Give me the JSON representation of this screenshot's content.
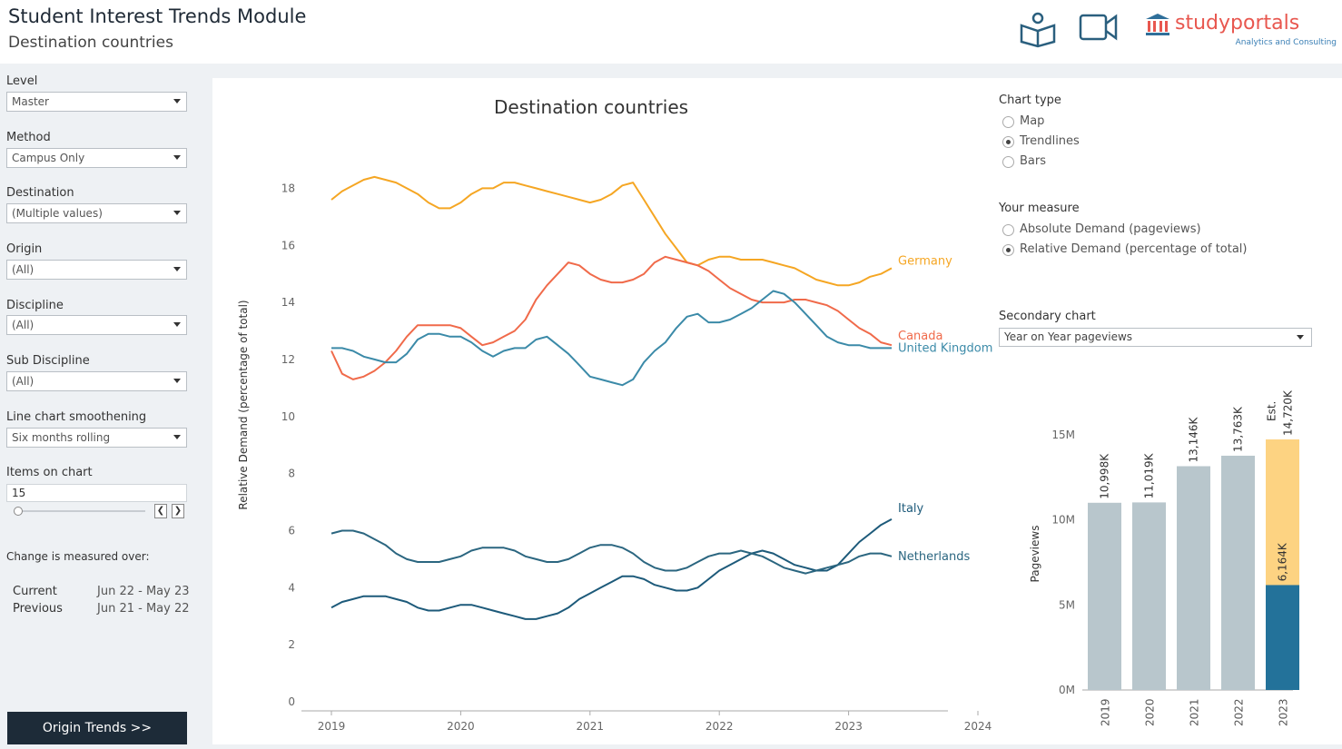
{
  "header": {
    "title": "Student Interest Trends Module",
    "subtitle": "Destination countries",
    "brand_name": "studyportals",
    "brand_tagline": "Analytics and Consulting"
  },
  "filters": [
    {
      "label": "Level",
      "value": "Master"
    },
    {
      "label": "Method",
      "value": "Campus Only"
    },
    {
      "label": "Destination",
      "value": "(Multiple values)"
    },
    {
      "label": "Origin",
      "value": "(All)"
    },
    {
      "label": "Discipline",
      "value": "(All)"
    },
    {
      "label": "Sub Discipline",
      "value": "(All)"
    },
    {
      "label": "Line chart smoothening",
      "value": "Six months rolling"
    }
  ],
  "items_on_chart": {
    "label": "Items on chart",
    "value": "15"
  },
  "change": {
    "note": "Change is measured over:",
    "current_label": "Current",
    "current_value": "Jun 22 - May 23",
    "previous_label": "Previous",
    "previous_value": "Jun 21 - May 22"
  },
  "origin_button": "Origin Trends >>",
  "chart_type": {
    "label": "Chart type",
    "options": [
      "Map",
      "Trendlines",
      "Bars"
    ],
    "selected": "Trendlines"
  },
  "measure": {
    "label": "Your measure",
    "options": [
      "Absolute Demand (pageviews)",
      "Relative Demand (percentage of total)"
    ],
    "selected": "Relative Demand (percentage of total)"
  },
  "secondary": {
    "label": "Secondary chart",
    "value": "Year on Year pageviews"
  },
  "colors": {
    "Germany": "#f5a623",
    "Canada": "#f06a4a",
    "United Kingdom": "#3b8aa8",
    "Italy": "#1d5a7a",
    "Netherlands": "#2b6680",
    "bar_grey": "#b8c6cc",
    "bar_est": "#fdd382",
    "bar_current": "#23729a"
  },
  "chart_data": [
    {
      "type": "line",
      "title": "Destination countries",
      "ylabel": "Relative Demand (percentage of total)",
      "xlabel": "",
      "ylim": [
        0,
        19
      ],
      "xlim": [
        2019,
        2024
      ],
      "yticks": [
        0,
        2,
        4,
        6,
        8,
        10,
        12,
        14,
        16,
        18
      ],
      "xticks": [
        2019,
        2020,
        2021,
        2022,
        2023,
        2024
      ],
      "x": [
        2019.0,
        2019.083,
        2019.167,
        2019.25,
        2019.333,
        2019.417,
        2019.5,
        2019.583,
        2019.667,
        2019.75,
        2019.833,
        2019.917,
        2020.0,
        2020.083,
        2020.167,
        2020.25,
        2020.333,
        2020.417,
        2020.5,
        2020.583,
        2020.667,
        2020.75,
        2020.833,
        2020.917,
        2021.0,
        2021.083,
        2021.167,
        2021.25,
        2021.333,
        2021.417,
        2021.5,
        2021.583,
        2021.667,
        2021.75,
        2021.833,
        2021.917,
        2022.0,
        2022.083,
        2022.167,
        2022.25,
        2022.333,
        2022.417,
        2022.5,
        2022.583,
        2022.667,
        2022.75,
        2022.833,
        2022.917,
        2023.0,
        2023.083,
        2023.167,
        2023.25,
        2023.333
      ],
      "series": [
        {
          "name": "Germany",
          "values": [
            17.6,
            17.9,
            18.1,
            18.3,
            18.4,
            18.3,
            18.2,
            18.0,
            17.8,
            17.5,
            17.3,
            17.3,
            17.5,
            17.8,
            18.0,
            18.0,
            18.2,
            18.2,
            18.1,
            18.0,
            17.9,
            17.8,
            17.7,
            17.6,
            17.5,
            17.6,
            17.8,
            18.1,
            18.2,
            17.6,
            17.0,
            16.4,
            15.9,
            15.4,
            15.3,
            15.5,
            15.6,
            15.6,
            15.5,
            15.5,
            15.5,
            15.4,
            15.3,
            15.2,
            15.0,
            14.8,
            14.7,
            14.6,
            14.6,
            14.7,
            14.9,
            15.0,
            15.2
          ]
        },
        {
          "name": "Canada",
          "values": [
            12.3,
            11.5,
            11.3,
            11.4,
            11.6,
            11.9,
            12.3,
            12.8,
            13.2,
            13.2,
            13.2,
            13.2,
            13.1,
            12.8,
            12.5,
            12.6,
            12.8,
            13.0,
            13.4,
            14.1,
            14.6,
            15.0,
            15.4,
            15.3,
            15.0,
            14.8,
            14.7,
            14.7,
            14.8,
            15.0,
            15.4,
            15.6,
            15.5,
            15.4,
            15.3,
            15.1,
            14.8,
            14.5,
            14.3,
            14.1,
            14.0,
            14.0,
            14.0,
            14.1,
            14.1,
            14.0,
            13.9,
            13.7,
            13.4,
            13.1,
            12.9,
            12.6,
            12.5
          ]
        },
        {
          "name": "United Kingdom",
          "values": [
            12.4,
            12.4,
            12.3,
            12.1,
            12.0,
            11.9,
            11.9,
            12.2,
            12.7,
            12.9,
            12.9,
            12.8,
            12.8,
            12.6,
            12.3,
            12.1,
            12.3,
            12.4,
            12.4,
            12.7,
            12.8,
            12.5,
            12.2,
            11.8,
            11.4,
            11.3,
            11.2,
            11.1,
            11.3,
            11.9,
            12.3,
            12.6,
            13.1,
            13.5,
            13.6,
            13.3,
            13.3,
            13.4,
            13.6,
            13.8,
            14.1,
            14.4,
            14.3,
            14.0,
            13.6,
            13.2,
            12.8,
            12.6,
            12.5,
            12.5,
            12.4,
            12.4,
            12.4
          ]
        },
        {
          "name": "Italy",
          "values": [
            3.3,
            3.5,
            3.6,
            3.7,
            3.7,
            3.7,
            3.6,
            3.5,
            3.3,
            3.2,
            3.2,
            3.3,
            3.4,
            3.4,
            3.3,
            3.2,
            3.1,
            3.0,
            2.9,
            2.9,
            3.0,
            3.1,
            3.3,
            3.6,
            3.8,
            4.0,
            4.2,
            4.4,
            4.4,
            4.3,
            4.1,
            4.0,
            3.9,
            3.9,
            4.0,
            4.3,
            4.6,
            4.8,
            5.0,
            5.2,
            5.3,
            5.2,
            5.0,
            4.8,
            4.7,
            4.6,
            4.6,
            4.8,
            5.2,
            5.6,
            5.9,
            6.2,
            6.4
          ]
        },
        {
          "name": "Netherlands",
          "values": [
            5.9,
            6.0,
            6.0,
            5.9,
            5.7,
            5.5,
            5.2,
            5.0,
            4.9,
            4.9,
            4.9,
            5.0,
            5.1,
            5.3,
            5.4,
            5.4,
            5.4,
            5.3,
            5.1,
            5.0,
            4.9,
            4.9,
            5.0,
            5.2,
            5.4,
            5.5,
            5.5,
            5.4,
            5.2,
            4.9,
            4.7,
            4.6,
            4.6,
            4.7,
            4.9,
            5.1,
            5.2,
            5.2,
            5.3,
            5.2,
            5.1,
            4.9,
            4.7,
            4.6,
            4.5,
            4.6,
            4.7,
            4.8,
            4.9,
            5.1,
            5.2,
            5.2,
            5.1
          ]
        }
      ]
    },
    {
      "type": "bar",
      "ylabel": "Pageviews",
      "ylim": [
        0,
        16000
      ],
      "yticks": [
        0,
        5000,
        10000,
        15000
      ],
      "ytick_labels": [
        "0M",
        "5M",
        "10M",
        "15M"
      ],
      "categories": [
        "2019",
        "2020",
        "2021",
        "2022",
        "2023"
      ],
      "values": [
        10998,
        11019,
        13146,
        13763,
        14720
      ],
      "value_labels": [
        "10,998K",
        "11,019K",
        "13,146K",
        "13,763K",
        "14,720K"
      ],
      "current_2023": 6164,
      "current_2023_label": "6,164K",
      "estimate_prefix": "Est."
    }
  ]
}
